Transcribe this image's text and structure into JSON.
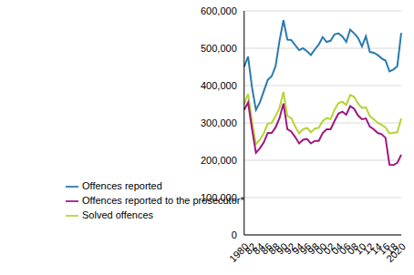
{
  "chart_data": {
    "type": "line",
    "categories": [
      "1980",
      null,
      "82",
      null,
      "84",
      null,
      "86",
      null,
      "88",
      null,
      "90",
      null,
      "92",
      null,
      "94",
      null,
      "96",
      null,
      "98",
      null,
      "00",
      null,
      "02",
      null,
      "04",
      null,
      "06",
      null,
      "08",
      null,
      "10",
      null,
      "12",
      null,
      "14",
      null,
      "16",
      null,
      "18",
      null,
      "2020"
    ],
    "series": [
      {
        "name": "Offences reported",
        "color": "#2a7ab0",
        "values": [
          450000,
          478000,
          395000,
          335000,
          355000,
          385000,
          415000,
          425000,
          452000,
          520000,
          575000,
          523000,
          522000,
          508000,
          495000,
          500000,
          492000,
          482000,
          497000,
          510000,
          530000,
          517000,
          520000,
          537000,
          540000,
          532000,
          517000,
          550000,
          540000,
          528000,
          505000,
          532000,
          490000,
          488000,
          482000,
          473000,
          467000,
          438000,
          443000,
          452000,
          541000
        ]
      },
      {
        "name": "Solved offences",
        "color": "#b5d334",
        "values": [
          350000,
          378000,
          305000,
          243000,
          255000,
          272000,
          298000,
          300000,
          318000,
          340000,
          383000,
          318000,
          313000,
          290000,
          272000,
          283000,
          287000,
          275000,
          285000,
          287000,
          305000,
          313000,
          310000,
          335000,
          353000,
          357000,
          348000,
          375000,
          370000,
          352000,
          340000,
          342000,
          318000,
          310000,
          300000,
          295000,
          288000,
          272000,
          273000,
          275000,
          312000
        ]
      },
      {
        "name": "Offences reported to the prosecutor*",
        "color": "#a0177f",
        "values": [
          335000,
          355000,
          283000,
          220000,
          232000,
          248000,
          273000,
          273000,
          288000,
          313000,
          352000,
          283000,
          277000,
          262000,
          245000,
          255000,
          257000,
          245000,
          252000,
          252000,
          273000,
          283000,
          283000,
          305000,
          325000,
          330000,
          322000,
          345000,
          338000,
          320000,
          310000,
          312000,
          290000,
          283000,
          273000,
          270000,
          260000,
          188000,
          187000,
          193000,
          215000
        ]
      }
    ],
    "ylim": [
      0,
      600000
    ],
    "yticks": [
      0,
      {
        "value": 100000,
        "label": "100,000"
      },
      {
        "value": 200000,
        "label": "200,000"
      },
      {
        "value": 300000,
        "label": "300,000"
      },
      {
        "value": 400000,
        "label": "400,000"
      },
      {
        "value": 500000,
        "label": "500,000"
      },
      {
        "value": 600000,
        "label": "600,000"
      }
    ],
    "grid": true,
    "legend": "lower left"
  }
}
